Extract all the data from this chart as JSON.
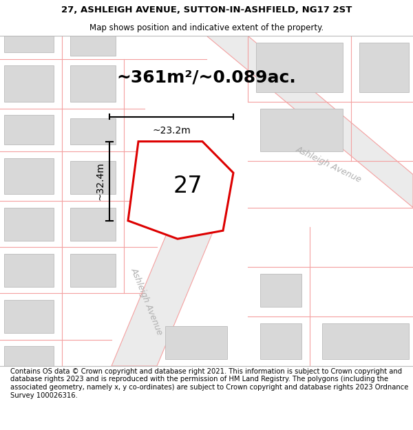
{
  "title_line1": "27, ASHLEIGH AVENUE, SUTTON-IN-ASHFIELD, NG17 2ST",
  "title_line2": "Map shows position and indicative extent of the property.",
  "area_text": "~361m²/~0.089ac.",
  "property_number": "27",
  "dim_height": "~32.4m",
  "dim_width": "~23.2m",
  "footer_text": "Contains OS data © Crown copyright and database right 2021. This information is subject to Crown copyright and database rights 2023 and is reproduced with the permission of HM Land Registry. The polygons (including the associated geometry, namely x, y co-ordinates) are subject to Crown copyright and database rights 2023 Ordnance Survey 100026316.",
  "bg_color": "#f0f0f0",
  "map_bg": "#f0f0f0",
  "title_bg": "#f0f0f0",
  "footer_bg": "#ffffff",
  "property_poly_color": "#dd0000",
  "property_fill_color": "#ffffff",
  "street_line_color": "#f4a0a0",
  "building_fill": "#d8d8d8",
  "building_edge": "#bbbbbb",
  "ashleigh_avenue_label": "Ashleigh Avenue",
  "ashleigh_avenue2_label": "Ashleigh Avenue",
  "title_fontsize": 9.5,
  "subtitle_fontsize": 8.5,
  "area_fontsize": 18,
  "number_fontsize": 24,
  "dim_fontsize": 10,
  "footer_fontsize": 7.2
}
